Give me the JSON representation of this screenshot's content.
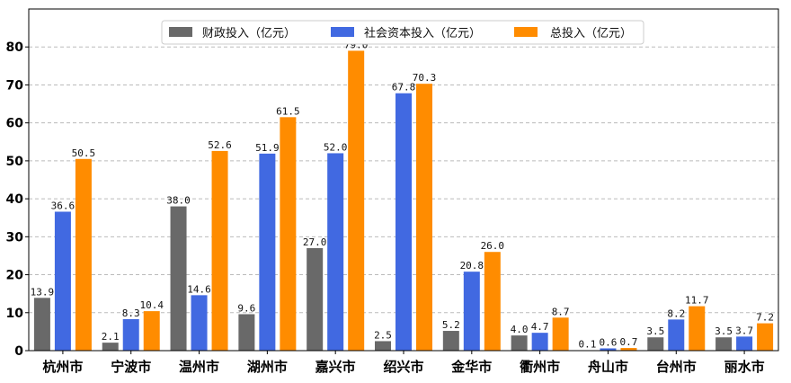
{
  "chart_data": {
    "type": "bar",
    "categories": [
      "杭州市",
      "宁波市",
      "温州市",
      "湖州市",
      "嘉兴市",
      "绍兴市",
      "金华市",
      "衢州市",
      "舟山市",
      "台州市",
      "丽水市"
    ],
    "series": [
      {
        "name": "财政投入（亿元）",
        "color": "#696969",
        "values": [
          13.9,
          2.1,
          38.0,
          9.6,
          27.0,
          2.5,
          5.2,
          4.0,
          0.1,
          3.5,
          3.5
        ],
        "labels": [
          "13.9",
          "2.1",
          "38.0",
          "9.6",
          "27.0",
          "2.5",
          "5.2",
          "4.0",
          "0.1",
          "3.5",
          "3.5"
        ]
      },
      {
        "name": "社会资本投入（亿元）",
        "color": "#4169E1",
        "values": [
          36.6,
          8.3,
          14.6,
          51.9,
          52.0,
          67.8,
          20.8,
          4.7,
          0.6,
          8.2,
          3.7
        ],
        "labels": [
          "36.6",
          "8.3",
          "14.6",
          "51.9",
          "52.0",
          "67.8",
          "20.8",
          "4.7",
          "0.6",
          "8.2",
          "3.7"
        ]
      },
      {
        "name": "总投入（亿元）",
        "color": "#FF8C00",
        "values": [
          50.5,
          10.4,
          52.6,
          61.5,
          79.0,
          70.3,
          26.0,
          8.7,
          0.7,
          11.7,
          7.2
        ],
        "labels": [
          "50.5",
          "10.4",
          "52.6",
          "61.5",
          "79.0",
          "70.3",
          "26.0",
          "8.7",
          "0.7",
          "11.7",
          "7.2"
        ]
      }
    ],
    "yticks": [
      "0",
      "10",
      "20",
      "30",
      "40",
      "50",
      "60",
      "70",
      "80"
    ],
    "ylim": [
      0,
      90
    ],
    "grid": "y-dashed",
    "legend_position": "top-center"
  }
}
